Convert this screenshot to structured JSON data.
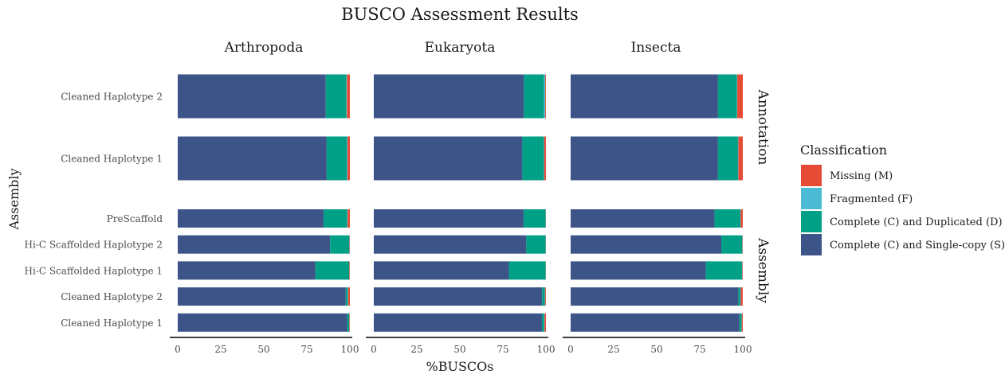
{
  "chart_data": {
    "type": "bar",
    "orientation": "horizontal",
    "stacked": true,
    "title": "BUSCO Assessment Results",
    "xlabel": "%BUSCOs",
    "ylabel": "Assembly",
    "xlim": [
      0,
      100
    ],
    "xticks": [
      "0",
      "25",
      "50",
      "75",
      "100"
    ],
    "facet_columns": [
      "Arthropoda",
      "Eukaryota",
      "Insecta"
    ],
    "facet_rows": [
      {
        "name": "Annotation",
        "categories": [
          "Cleaned Haplotype 2",
          "Cleaned Haplotype 1"
        ]
      },
      {
        "name": "Assembly",
        "categories": [
          "PreScaffold",
          "Hi-C Scaffolded Haplotype 2",
          "Hi-C Scaffolded Haplotype 1",
          "Cleaned Haplotype 2",
          "Cleaned Haplotype 1"
        ]
      }
    ],
    "legend": {
      "title": "Classification",
      "position": "right",
      "items": [
        {
          "key": "M",
          "label": "Missing (M)",
          "color": "#e64b35"
        },
        {
          "key": "F",
          "label": "Fragmented (F)",
          "color": "#4dbbd5"
        },
        {
          "key": "D",
          "label": "Complete (C) and Duplicated (D)",
          "color": "#00a087"
        },
        {
          "key": "S",
          "label": "Complete (C) and Single-copy (S)",
          "color": "#3c5488"
        }
      ]
    },
    "stack_order": [
      "S",
      "D",
      "F",
      "M"
    ],
    "panels": {
      "Annotation": {
        "Arthropoda": {
          "Cleaned Haplotype 2": {
            "S": 86.0,
            "D": 12.0,
            "F": 0.3,
            "M": 1.7
          },
          "Cleaned Haplotype 1": {
            "S": 86.5,
            "D": 11.8,
            "F": 0.3,
            "M": 1.4
          }
        },
        "Eukaryota": {
          "Cleaned Haplotype 2": {
            "S": 87.2,
            "D": 11.6,
            "F": 0.8,
            "M": 0.4
          },
          "Cleaned Haplotype 1": {
            "S": 86.3,
            "D": 12.5,
            "F": 0.2,
            "M": 1.0
          }
        },
        "Insecta": {
          "Cleaned Haplotype 2": {
            "S": 85.6,
            "D": 11.0,
            "F": 0.2,
            "M": 3.2
          },
          "Cleaned Haplotype 1": {
            "S": 85.6,
            "D": 11.6,
            "F": 0.2,
            "M": 2.6
          }
        }
      },
      "Assembly": {
        "Arthropoda": {
          "PreScaffold": {
            "S": 84.7,
            "D": 13.8,
            "F": 0.2,
            "M": 1.3
          },
          "Hi-C Scaffolded Haplotype 2": {
            "S": 88.5,
            "D": 11.2,
            "F": 0.1,
            "M": 0.2
          },
          "Hi-C Scaffolded Haplotype 1": {
            "S": 80.0,
            "D": 19.6,
            "F": 0.1,
            "M": 0.3
          },
          "Cleaned Haplotype 2": {
            "S": 97.6,
            "D": 1.2,
            "F": 0.2,
            "M": 1.0
          },
          "Cleaned Haplotype 1": {
            "S": 98.4,
            "D": 1.2,
            "F": 0.1,
            "M": 0.3
          }
        },
        "Eukaryota": {
          "PreScaffold": {
            "S": 87.0,
            "D": 12.8,
            "F": 0.1,
            "M": 0.1
          },
          "Hi-C Scaffolded Haplotype 2": {
            "S": 88.6,
            "D": 11.2,
            "F": 0.1,
            "M": 0.1
          },
          "Hi-C Scaffolded Haplotype 1": {
            "S": 78.5,
            "D": 21.3,
            "F": 0.1,
            "M": 0.1
          },
          "Cleaned Haplotype 2": {
            "S": 97.8,
            "D": 1.6,
            "F": 0.2,
            "M": 0.4
          },
          "Cleaned Haplotype 1": {
            "S": 97.7,
            "D": 1.3,
            "F": 0.2,
            "M": 0.8
          }
        },
        "Insecta": {
          "PreScaffold": {
            "S": 83.6,
            "D": 15.0,
            "F": 0.2,
            "M": 1.2
          },
          "Hi-C Scaffolded Haplotype 2": {
            "S": 87.5,
            "D": 12.2,
            "F": 0.1,
            "M": 0.2
          },
          "Hi-C Scaffolded Haplotype 1": {
            "S": 78.5,
            "D": 21.0,
            "F": 0.2,
            "M": 0.3
          },
          "Cleaned Haplotype 2": {
            "S": 97.4,
            "D": 1.2,
            "F": 0.2,
            "M": 1.2
          },
          "Cleaned Haplotype 1": {
            "S": 98.0,
            "D": 1.3,
            "F": 0.1,
            "M": 0.6
          }
        }
      }
    }
  }
}
